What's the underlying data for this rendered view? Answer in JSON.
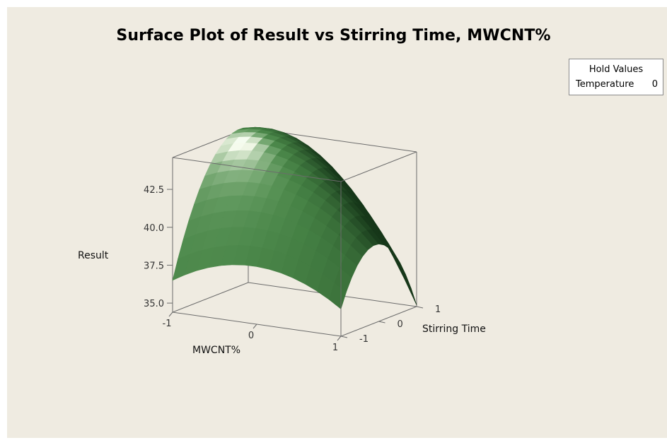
{
  "chart_data": {
    "type": "surface",
    "title": "Surface Plot of Result vs Stirring Time, MWCNT%",
    "xlabel": "MWCNT%",
    "ylabel": "Stirring Time",
    "zlabel": "Result",
    "x_ticks": [
      "-1",
      "0",
      "1"
    ],
    "y_ticks": [
      "-1",
      "0",
      "1"
    ],
    "z_ticks": [
      "35.0",
      "37.5",
      "40.0",
      "42.5"
    ],
    "xlim": [
      -1,
      1
    ],
    "ylim": [
      -1,
      1
    ],
    "zlim": [
      34.4,
      44.6
    ],
    "hold_values": {
      "heading": "Hold Values",
      "factor": "Temperature",
      "value": "0"
    },
    "surface": {
      "x": [
        -1,
        0,
        1
      ],
      "y": [
        -1,
        0,
        1
      ],
      "z": [
        [
          36.5,
          43.2,
          44.6
        ],
        [
          38.2,
          43.5,
          42.8
        ],
        [
          36.2,
          39.5,
          34.5
        ]
      ]
    },
    "colors": {
      "surface_dark": "#1a3d1c",
      "surface_mid": "#3f7a43",
      "surface_light": "#e3f5df",
      "background": "#efebe1"
    }
  }
}
